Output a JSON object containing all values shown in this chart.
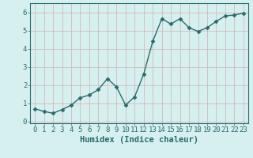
{
  "x": [
    0,
    1,
    2,
    3,
    4,
    5,
    6,
    7,
    8,
    9,
    10,
    11,
    12,
    13,
    14,
    15,
    16,
    17,
    18,
    19,
    20,
    21,
    22,
    23
  ],
  "y": [
    0.7,
    0.55,
    0.45,
    0.65,
    0.9,
    1.3,
    1.45,
    1.75,
    2.35,
    1.9,
    0.9,
    1.35,
    2.6,
    4.4,
    5.65,
    5.35,
    5.65,
    5.15,
    4.95,
    5.15,
    5.5,
    5.8,
    5.85,
    5.95
  ],
  "line_color": "#2a6b6b",
  "marker": "D",
  "marker_size": 2.5,
  "line_width": 1.0,
  "bg_color": "#d6f0f0",
  "grid_color": "#c8dede",
  "xlabel": "Humidex (Indice chaleur)",
  "tick_fontsize": 6.5,
  "xlabel_fontsize": 7.5,
  "ylim": [
    -0.1,
    6.5
  ],
  "xlim": [
    -0.5,
    23.5
  ],
  "yticks": [
    0,
    1,
    2,
    3,
    4,
    5,
    6
  ],
  "xticks": [
    0,
    1,
    2,
    3,
    4,
    5,
    6,
    7,
    8,
    9,
    10,
    11,
    12,
    13,
    14,
    15,
    16,
    17,
    18,
    19,
    20,
    21,
    22,
    23
  ]
}
